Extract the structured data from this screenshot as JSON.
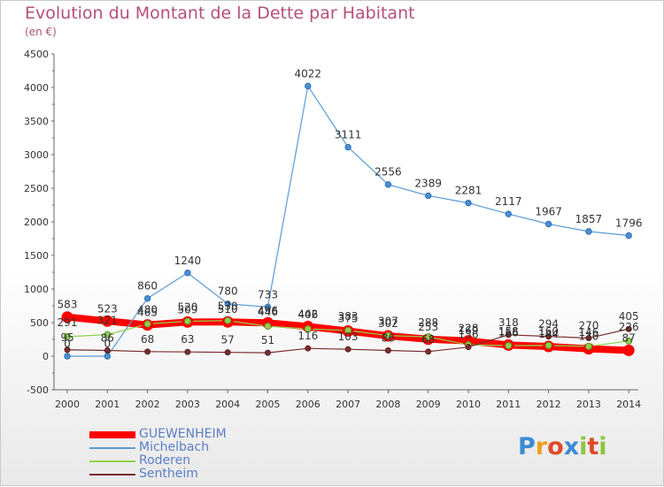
{
  "title": "Evolution du Montant de la Dette par Habitant",
  "subtitle": "(en €)",
  "brand": {
    "text": "Proxiti",
    "letters": [
      "P",
      "r",
      "o",
      "x",
      "i",
      "t",
      "i"
    ],
    "colors": [
      "#3a8bd6",
      "#f0a020",
      "#e04a2a",
      "#3a8bd6",
      "#8cc63f",
      "#e04a2a",
      "#8cc63f"
    ]
  },
  "chart_data": {
    "type": "line",
    "title": "Evolution du Montant de la Dette par Habitant",
    "subtitle": "(en €)",
    "x": [
      "2000",
      "2001",
      "2002",
      "2003",
      "2004",
      "2005",
      "2006",
      "2007",
      "2008",
      "2009",
      "2010",
      "2011",
      "2012",
      "2013",
      "2014"
    ],
    "ylim": [
      -500,
      4500
    ],
    "yticks": [
      "-500",
      "0",
      "500",
      "1000",
      "1500",
      "2000",
      "2500",
      "3000",
      "3500",
      "4000",
      "4500"
    ],
    "grid": false,
    "legend_position": "bottom-left",
    "series": [
      {
        "name": "GUEWENHEIM",
        "color": "#ff0000",
        "values": [
          583,
          523,
          465,
          509,
          510,
          496,
          442,
          375,
          302,
          253,
          228,
          166,
          144,
          110,
          87
        ],
        "labels": [
          "583",
          "523",
          "465",
          "509",
          "510",
          "496",
          "442",
          "375",
          "302",
          "253",
          "228",
          "166",
          "144",
          "110",
          "87"
        ]
      },
      {
        "name": "Michelbach",
        "color": "#5b9bd5",
        "values": [
          0,
          0,
          860,
          1240,
          780,
          733,
          4022,
          3111,
          2556,
          2389,
          2281,
          2117,
          1967,
          1857,
          1796
        ],
        "labels": [
          "0",
          "0",
          "860",
          "1240",
          "780",
          "733",
          "4022",
          "3111",
          "2556",
          "2389",
          "2281",
          "2117",
          "1967",
          "1857",
          "1796"
        ]
      },
      {
        "name": "Roderen",
        "color": "#8fd14f",
        "values": [
          291,
          321,
          480,
          520,
          530,
          446,
          406,
          383,
          307,
          288,
          169,
          158,
          160,
          146,
          226
        ],
        "labels": [
          "291",
          "321",
          "480",
          "520",
          "530",
          "446",
          "406",
          "383",
          "307",
          "288",
          "169",
          "158",
          "160",
          "146",
          "226"
        ]
      },
      {
        "name": "Sentheim",
        "color": "#7a2e2e",
        "values": [
          95,
          86,
          68,
          63,
          57,
          51,
          116,
          103,
          86,
          68,
          136,
          318,
          294,
          270,
          405
        ],
        "labels": [
          "95",
          "86",
          "68",
          "63",
          "57",
          "51",
          "116",
          "103",
          "86",
          "68",
          "136",
          "318",
          "294",
          "270",
          "405"
        ]
      }
    ]
  }
}
